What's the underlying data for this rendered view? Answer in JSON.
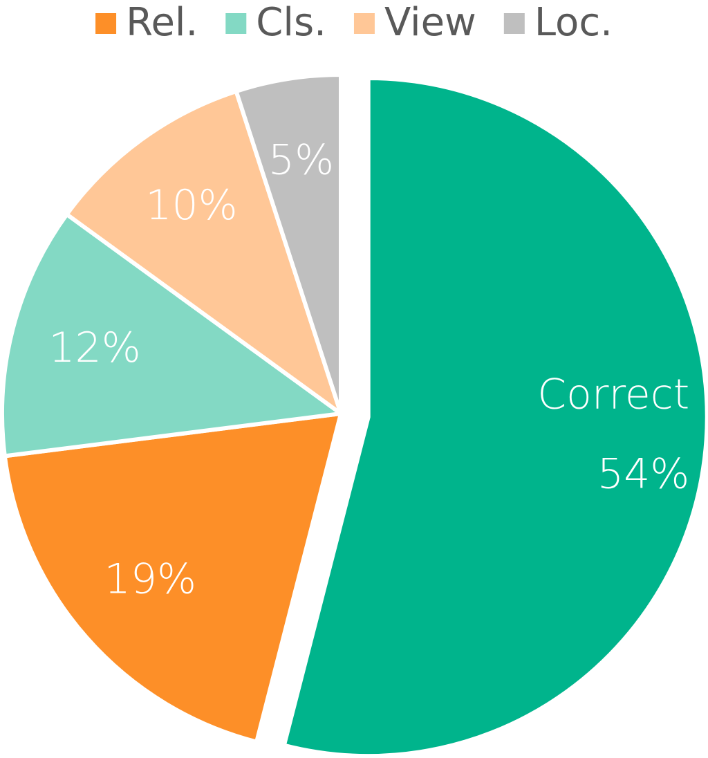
{
  "chart_data": {
    "type": "pie",
    "categories": [
      "Correct",
      "Rel.",
      "Cls.",
      "View",
      "Loc."
    ],
    "values": [
      54,
      19,
      12,
      10,
      5
    ],
    "value_labels": [
      "54%",
      "19%",
      "12%",
      "10%",
      "5%"
    ],
    "colors": [
      "#00b48c",
      "#fd8f28",
      "#83d9c4",
      "#ffc797",
      "#bfbfbf"
    ],
    "exploded_index": 0,
    "legend": "top"
  }
}
